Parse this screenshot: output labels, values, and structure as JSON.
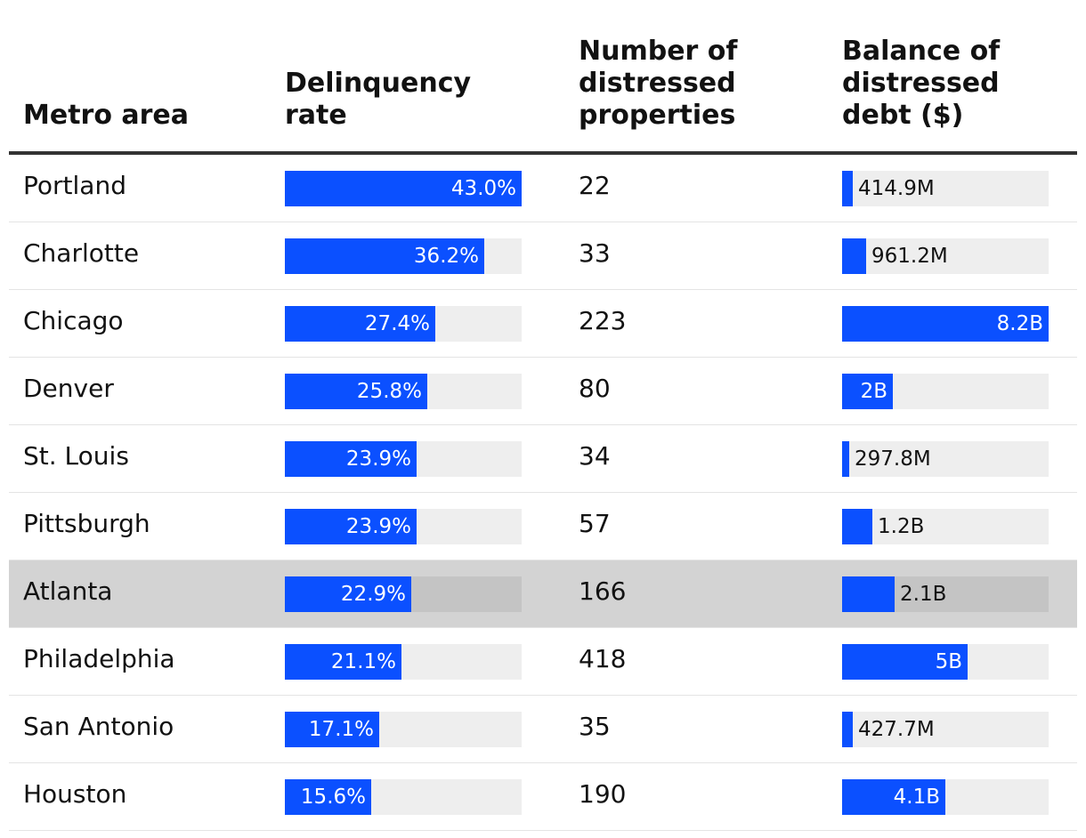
{
  "headers": {
    "metro": "Metro area",
    "rate": "Delinquency rate",
    "count": "Number of distressed properties",
    "debt": "Balance of distressed debt ($)"
  },
  "colors": {
    "bar": "#0b50ff",
    "track": "#eeeeee",
    "highlight_row": "#d3d3d3",
    "highlight_track": "#c4c4c4"
  },
  "chart_data": {
    "type": "table",
    "columns": [
      "Metro area",
      "Delinquency rate",
      "Number of distressed properties",
      "Balance of distressed debt ($)"
    ],
    "rate_max": 43.0,
    "debt_max": 8.2,
    "highlighted": "Atlanta",
    "rows": [
      {
        "metro": "Portland",
        "rate": 43.0,
        "rate_label": "43.0%",
        "count": "22",
        "debt": 0.4149,
        "debt_label": "414.9M"
      },
      {
        "metro": "Charlotte",
        "rate": 36.2,
        "rate_label": "36.2%",
        "count": "33",
        "debt": 0.9612,
        "debt_label": "961.2M"
      },
      {
        "metro": "Chicago",
        "rate": 27.4,
        "rate_label": "27.4%",
        "count": "223",
        "debt": 8.2,
        "debt_label": "8.2B"
      },
      {
        "metro": "Denver",
        "rate": 25.8,
        "rate_label": "25.8%",
        "count": "80",
        "debt": 2.0,
        "debt_label": "2B"
      },
      {
        "metro": "St. Louis",
        "rate": 23.9,
        "rate_label": "23.9%",
        "count": "34",
        "debt": 0.2978,
        "debt_label": "297.8M"
      },
      {
        "metro": "Pittsburgh",
        "rate": 23.9,
        "rate_label": "23.9%",
        "count": "57",
        "debt": 1.2,
        "debt_label": "1.2B"
      },
      {
        "metro": "Atlanta",
        "rate": 22.9,
        "rate_label": "22.9%",
        "count": "166",
        "debt": 2.1,
        "debt_label": "2.1B"
      },
      {
        "metro": "Philadelphia",
        "rate": 21.1,
        "rate_label": "21.1%",
        "count": "418",
        "debt": 5.0,
        "debt_label": "5B"
      },
      {
        "metro": "San Antonio",
        "rate": 17.1,
        "rate_label": "17.1%",
        "count": "35",
        "debt": 0.4277,
        "debt_label": "427.7M"
      },
      {
        "metro": "Houston",
        "rate": 15.6,
        "rate_label": "15.6%",
        "count": "190",
        "debt": 4.1,
        "debt_label": "4.1B"
      }
    ]
  }
}
